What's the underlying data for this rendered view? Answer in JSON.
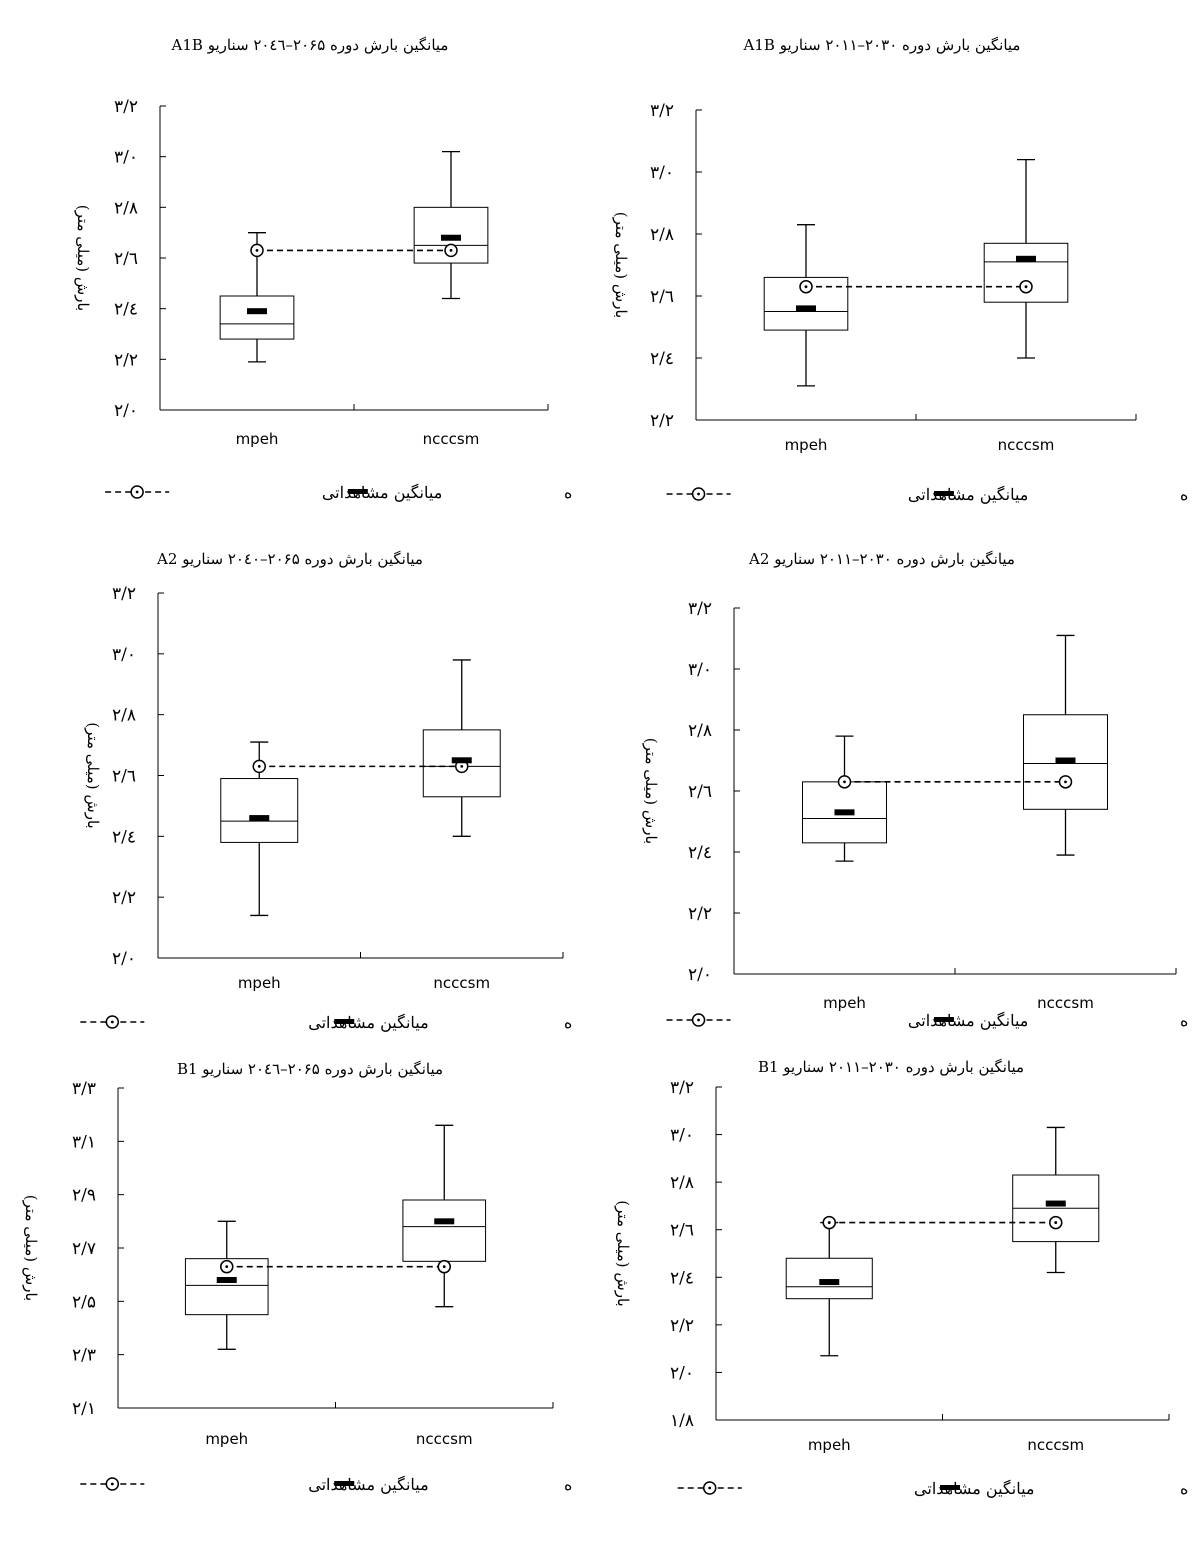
{
  "legend": {
    "predicted": "میانگین پیش بینی شده",
    "observed": "میانگین مشاهداتی"
  },
  "chart_data": [
    {
      "id": "p1",
      "type": "box",
      "title": "میانگین بارش دوره ۲۰۶۵–۲۰٤٦ سناریو A1B",
      "ylabel": "بارش (میلی متر)",
      "ylim": [
        2.0,
        3.2
      ],
      "yticks": [
        2.0,
        2.2,
        2.4,
        2.6,
        2.8,
        3.0,
        3.2
      ],
      "ytick_labels": [
        "۲/۰",
        "۲/۲",
        "۲/٤",
        "۲/٦",
        "۲/۸",
        "۳/۰",
        "۳/۲"
      ],
      "categories": [
        "mpeh",
        "ncccsm"
      ],
      "boxes": [
        {
          "min": 2.19,
          "q1": 2.28,
          "median": 2.34,
          "q3": 2.45,
          "max": 2.7
        },
        {
          "min": 2.44,
          "q1": 2.58,
          "median": 2.65,
          "q3": 2.8,
          "max": 3.02
        }
      ],
      "predicted_mean": [
        2.39,
        2.68
      ],
      "observed_mean": [
        2.63,
        2.63
      ]
    },
    {
      "id": "p2",
      "type": "box",
      "title": "میانگین بارش دوره ۲۰۳۰–۲۰۱۱ سناریو A1B",
      "ylabel": "بارش (میلی متر)",
      "ylim": [
        2.2,
        3.2
      ],
      "yticks": [
        2.2,
        2.4,
        2.6,
        2.8,
        3.0,
        3.2
      ],
      "ytick_labels": [
        "۲/۲",
        "۲/٤",
        "۲/٦",
        "۲/۸",
        "۳/۰",
        "۳/۲"
      ],
      "categories": [
        "mpeh",
        "ncccsm"
      ],
      "boxes": [
        {
          "min": 2.31,
          "q1": 2.49,
          "median": 2.55,
          "q3": 2.66,
          "max": 2.83
        },
        {
          "min": 2.4,
          "q1": 2.58,
          "median": 2.71,
          "q3": 2.77,
          "max": 3.04
        }
      ],
      "predicted_mean": [
        2.56,
        2.72
      ],
      "observed_mean": [
        2.63,
        2.63
      ]
    },
    {
      "id": "p3",
      "type": "box",
      "title": "میانگین بارش دوره ۲۰۶۵–۲۰٤۰ سناریو A2",
      "ylabel": "بارش (میلی متر)",
      "ylim": [
        2.0,
        3.2
      ],
      "yticks": [
        2.0,
        2.2,
        2.4,
        2.6,
        2.8,
        3.0,
        3.2
      ],
      "ytick_labels": [
        "۲/۰",
        "۲/۲",
        "۲/٤",
        "۲/٦",
        "۲/۸",
        "۳/۰",
        "۳/۲"
      ],
      "categories": [
        "mpeh",
        "ncccsm"
      ],
      "boxes": [
        {
          "min": 2.14,
          "q1": 2.38,
          "median": 2.45,
          "q3": 2.59,
          "max": 2.71
        },
        {
          "min": 2.4,
          "q1": 2.53,
          "median": 2.63,
          "q3": 2.75,
          "max": 2.98
        }
      ],
      "predicted_mean": [
        2.46,
        2.65
      ],
      "observed_mean": [
        2.63,
        2.63
      ]
    },
    {
      "id": "p4",
      "type": "box",
      "title": "میانگین بارش دوره ۲۰۳۰–۲۰۱۱ سناریو A2",
      "ylabel": "بارش (میلی متر)",
      "ylim": [
        2.0,
        3.2
      ],
      "yticks": [
        2.0,
        2.2,
        2.4,
        2.6,
        2.8,
        3.0,
        3.2
      ],
      "ytick_labels": [
        "۲/۰",
        "۲/۲",
        "۲/٤",
        "۲/٦",
        "۲/۸",
        "۳/۰",
        "۳/۲"
      ],
      "categories": [
        "mpeh",
        "ncccsm"
      ],
      "boxes": [
        {
          "min": 2.37,
          "q1": 2.43,
          "median": 2.51,
          "q3": 2.63,
          "max": 2.78
        },
        {
          "min": 2.39,
          "q1": 2.54,
          "median": 2.69,
          "q3": 2.85,
          "max": 3.11
        }
      ],
      "predicted_mean": [
        2.53,
        2.7
      ],
      "observed_mean": [
        2.63,
        2.63
      ]
    },
    {
      "id": "p5",
      "type": "box",
      "title": "میانگین بارش دوره ۲۰۶۵–۲۰٤٦ سناریو B1",
      "ylabel": "بارش (میلی متر)",
      "ylim": [
        2.1,
        3.3
      ],
      "yticks": [
        2.1,
        2.3,
        2.5,
        2.7,
        2.9,
        3.1,
        3.3
      ],
      "ytick_labels": [
        "۲/۱",
        "۲/۳",
        "۲/۵",
        "۲/۷",
        "۲/۹",
        "۳/۱",
        "۳/۳"
      ],
      "categories": [
        "mpeh",
        "ncccsm"
      ],
      "boxes": [
        {
          "min": 2.32,
          "q1": 2.45,
          "median": 2.56,
          "q3": 2.66,
          "max": 2.8
        },
        {
          "min": 2.48,
          "q1": 2.65,
          "median": 2.78,
          "q3": 2.88,
          "max": 3.16
        }
      ],
      "predicted_mean": [
        2.58,
        2.8
      ],
      "observed_mean": [
        2.63,
        2.63
      ]
    },
    {
      "id": "p6",
      "type": "box",
      "title": "میانگین بارش دوره ۲۰۳۰–۲۰۱۱ سناریو B1",
      "ylabel": "بارش (میلی متر)",
      "ylim": [
        1.8,
        3.2
      ],
      "yticks": [
        1.8,
        2.0,
        2.2,
        2.4,
        2.6,
        2.8,
        3.0,
        3.2
      ],
      "ytick_labels": [
        "۱/۸",
        "۲/۰",
        "۲/۲",
        "۲/٤",
        "۲/٦",
        "۲/۸",
        "۳/۰",
        "۳/۲"
      ],
      "categories": [
        "mpeh",
        "ncccsm"
      ],
      "boxes": [
        {
          "min": 2.07,
          "q1": 2.31,
          "median": 2.36,
          "q3": 2.48,
          "max": 2.63
        },
        {
          "min": 2.42,
          "q1": 2.55,
          "median": 2.69,
          "q3": 2.83,
          "max": 3.03
        }
      ],
      "predicted_mean": [
        2.38,
        2.71
      ],
      "observed_mean": [
        2.63,
        2.63
      ]
    }
  ]
}
